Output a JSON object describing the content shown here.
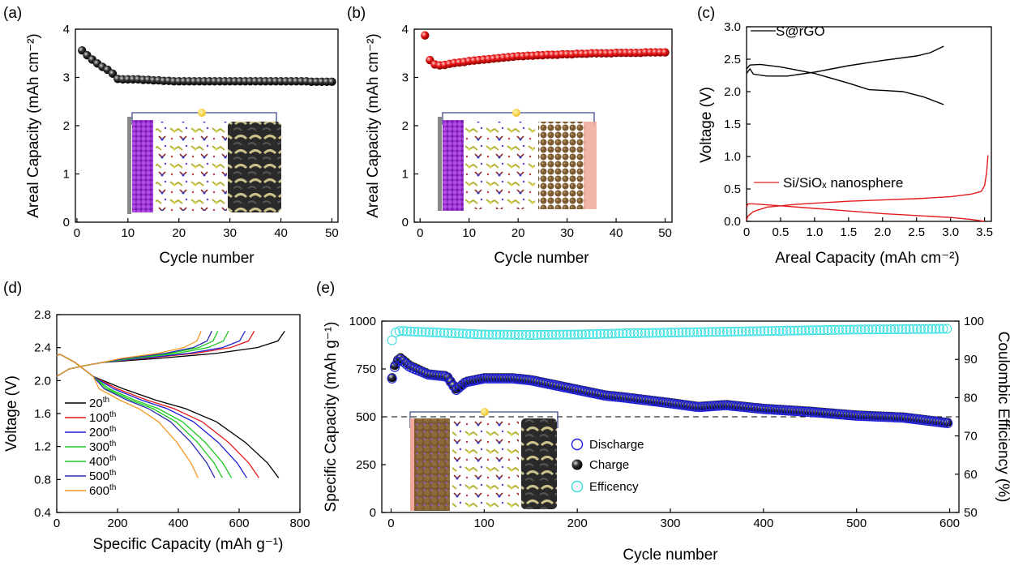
{
  "colors": {
    "charge_black": "#000000",
    "discharge_blue": "#1f1fd6",
    "efficiency_cyan": "#33dfe0",
    "red": "#e41a1c",
    "green": "#1ec81e",
    "orange": "#f39a26",
    "dark_blue": "#2a2ab0"
  },
  "chart_data": [
    {
      "panel": "(a)",
      "type": "scatter",
      "xlabel": "Cycle number",
      "ylabel": "Areal Capacity (mAh cm⁻²)",
      "xlim": [
        0,
        50
      ],
      "ylim": [
        0,
        4
      ],
      "xticks": [
        0,
        10,
        20,
        30,
        40,
        50
      ],
      "yticks": [
        0,
        1,
        2,
        3,
        4
      ],
      "series": [
        {
          "marker": "black-sphere",
          "x": [
            1,
            2,
            3,
            4,
            5,
            6,
            7,
            8,
            9,
            10,
            11,
            12,
            13,
            14,
            15,
            16,
            17,
            18,
            19,
            20,
            21,
            22,
            23,
            24,
            25,
            26,
            27,
            28,
            29,
            30,
            31,
            32,
            33,
            34,
            35,
            36,
            37,
            38,
            39,
            40,
            41,
            42,
            43,
            44,
            45,
            46,
            47,
            48,
            49,
            50
          ],
          "values": [
            3.56,
            3.46,
            3.37,
            3.29,
            3.22,
            3.16,
            3.08,
            2.97,
            2.96,
            2.96,
            2.96,
            2.96,
            2.95,
            2.95,
            2.94,
            2.94,
            2.93,
            2.93,
            2.92,
            2.92,
            2.92,
            2.92,
            2.92,
            2.92,
            2.92,
            2.92,
            2.92,
            2.92,
            2.92,
            2.92,
            2.92,
            2.92,
            2.92,
            2.92,
            2.92,
            2.92,
            2.92,
            2.92,
            2.92,
            2.92,
            2.92,
            2.92,
            2.92,
            2.92,
            2.92,
            2.91,
            2.91,
            2.91,
            2.91,
            2.91
          ]
        }
      ]
    },
    {
      "panel": "(b)",
      "type": "scatter",
      "xlabel": "Cycle number",
      "ylabel": "Areal Capacity (mAh cm⁻²)",
      "xlim": [
        0,
        50
      ],
      "ylim": [
        0,
        4
      ],
      "xticks": [
        0,
        10,
        20,
        30,
        40,
        50
      ],
      "yticks": [
        0,
        1,
        2,
        3,
        4
      ],
      "series": [
        {
          "marker": "red-sphere",
          "x": [
            1,
            2,
            3,
            4,
            5,
            6,
            7,
            8,
            9,
            10,
            11,
            12,
            13,
            14,
            15,
            16,
            17,
            18,
            19,
            20,
            21,
            22,
            23,
            24,
            25,
            26,
            27,
            28,
            29,
            30,
            31,
            32,
            33,
            34,
            35,
            36,
            37,
            38,
            39,
            40,
            41,
            42,
            43,
            44,
            45,
            46,
            47,
            48,
            49,
            50
          ],
          "values": [
            3.87,
            3.36,
            3.27,
            3.25,
            3.26,
            3.28,
            3.3,
            3.31,
            3.32,
            3.34,
            3.35,
            3.36,
            3.37,
            3.38,
            3.39,
            3.4,
            3.41,
            3.42,
            3.43,
            3.44,
            3.44,
            3.45,
            3.45,
            3.46,
            3.46,
            3.47,
            3.47,
            3.47,
            3.48,
            3.48,
            3.48,
            3.49,
            3.49,
            3.49,
            3.5,
            3.5,
            3.5,
            3.5,
            3.5,
            3.51,
            3.51,
            3.51,
            3.51,
            3.51,
            3.51,
            3.52,
            3.52,
            3.52,
            3.52,
            3.52
          ]
        }
      ]
    },
    {
      "panel": "(c)",
      "type": "line",
      "xlabel": "Areal Capacity (mAh cm⁻²)",
      "ylabel": "Voltage (V)",
      "xlim": [
        0,
        3.6
      ],
      "ylim": [
        0,
        3.0
      ],
      "xticks": [
        0,
        0.5,
        1.0,
        1.5,
        2.0,
        2.5,
        3.0,
        3.5
      ],
      "yticks": [
        0,
        0.5,
        1.0,
        1.5,
        2.0,
        2.5,
        3.0
      ],
      "series": [
        {
          "name": "S@rGO",
          "color": "black",
          "segment": "charge",
          "x": [
            0,
            0.05,
            0.1,
            0.3,
            0.6,
            1.0,
            1.5,
            2.0,
            2.5,
            2.7,
            2.8,
            2.9
          ],
          "values": [
            2.28,
            2.35,
            2.27,
            2.24,
            2.24,
            2.3,
            2.4,
            2.48,
            2.55,
            2.6,
            2.65,
            2.7
          ]
        },
        {
          "name": "S@rGO",
          "color": "black",
          "segment": "discharge",
          "x": [
            0,
            0.05,
            0.2,
            0.5,
            1.0,
            1.5,
            1.8,
            2.0,
            2.3,
            2.6,
            2.9
          ],
          "values": [
            2.35,
            2.41,
            2.42,
            2.38,
            2.28,
            2.13,
            2.03,
            2.02,
            2.0,
            1.92,
            1.8
          ]
        },
        {
          "name": "Si/SiOₓ nanosphere",
          "color": "red",
          "segment": "charge",
          "x": [
            0,
            0.02,
            0.1,
            0.3,
            0.7,
            1.0,
            1.5,
            2.0,
            2.5,
            3.0,
            3.3,
            3.45,
            3.5,
            3.53,
            3.55
          ],
          "values": [
            0.02,
            0.08,
            0.15,
            0.22,
            0.26,
            0.28,
            0.31,
            0.33,
            0.35,
            0.38,
            0.42,
            0.46,
            0.55,
            0.75,
            1.02
          ]
        },
        {
          "name": "Si/SiOₓ nanosphere",
          "color": "red",
          "segment": "discharge",
          "x": [
            0,
            0.02,
            0.1,
            0.5,
            1.0,
            1.5,
            2.0,
            2.5,
            3.0,
            3.3,
            3.5
          ],
          "values": [
            0.22,
            0.27,
            0.27,
            0.24,
            0.2,
            0.16,
            0.12,
            0.09,
            0.06,
            0.03,
            0.0
          ]
        }
      ],
      "legend": [
        "S@rGO",
        "Si/SiOₓ nanosphere"
      ]
    },
    {
      "panel": "(d)",
      "type": "line",
      "xlabel": "Specific Capacity (mAh g⁻¹)",
      "ylabel": "Voltage (V)",
      "xlim": [
        0,
        800
      ],
      "ylim": [
        0.4,
        2.8
      ],
      "xticks": [
        0,
        200,
        400,
        600,
        800
      ],
      "yticks": [
        0.4,
        0.8,
        1.2,
        1.6,
        2.0,
        2.4,
        2.8
      ],
      "series": [
        {
          "name": "20th",
          "color": "black",
          "charge_end": 750,
          "discharge_end": 730
        },
        {
          "name": "100th",
          "color": "red",
          "charge_end": 650,
          "discharge_end": 665
        },
        {
          "name": "200th",
          "color": "blue",
          "charge_end": 620,
          "discharge_end": 625
        },
        {
          "name": "300th",
          "color": "green",
          "charge_end": 565,
          "discharge_end": 575
        },
        {
          "name": "400th",
          "color": "green",
          "charge_end": 530,
          "discharge_end": 545
        },
        {
          "name": "500th",
          "color": "navy",
          "charge_end": 510,
          "discharge_end": 520
        },
        {
          "name": "600th",
          "color": "orange",
          "charge_end": 475,
          "discharge_end": 465
        }
      ],
      "legend_labels": [
        "20",
        "100",
        "200",
        "300",
        "400",
        "500",
        "600"
      ],
      "legend_suffix": "th"
    },
    {
      "panel": "(e)",
      "type": "scatter",
      "xlabel": "Cycle number",
      "ylabel": "Specific Capacity (mAh g⁻¹)",
      "ylabel_right": "Coulombic Efficiency (%)",
      "xlim": [
        -10,
        610
      ],
      "ylim": [
        0,
        1000
      ],
      "ylim_right": [
        50,
        100
      ],
      "xticks": [
        0,
        100,
        200,
        300,
        400,
        500,
        600
      ],
      "yticks": [
        0,
        250,
        500,
        750,
        1000
      ],
      "yticks_right": [
        50,
        60,
        70,
        80,
        90,
        100
      ],
      "reference_line": 500,
      "series": [
        {
          "name": "Discharge",
          "marker": "blue-open-circle",
          "x": [
            1,
            5,
            10,
            20,
            40,
            60,
            70,
            80,
            100,
            130,
            150,
            170,
            200,
            230,
            250,
            300,
            330,
            360,
            400,
            450,
            500,
            550,
            600
          ],
          "values": [
            700,
            780,
            800,
            760,
            720,
            710,
            640,
            680,
            700,
            700,
            690,
            670,
            640,
            610,
            600,
            570,
            550,
            560,
            540,
            525,
            505,
            495,
            465
          ]
        },
        {
          "name": "Charge",
          "marker": "black-sphere",
          "x": [
            1,
            5,
            10,
            20,
            40,
            60,
            70,
            80,
            100,
            130,
            150,
            170,
            200,
            230,
            250,
            300,
            330,
            360,
            400,
            450,
            500,
            550,
            600
          ],
          "values": [
            705,
            790,
            810,
            770,
            725,
            715,
            645,
            685,
            705,
            705,
            695,
            675,
            645,
            615,
            605,
            575,
            555,
            565,
            545,
            530,
            510,
            500,
            470
          ]
        },
        {
          "name": "Efficency",
          "marker": "cyan-open-circle",
          "axis": "right",
          "x": [
            1,
            5,
            10,
            20,
            50,
            100,
            150,
            200,
            250,
            300,
            350,
            400,
            450,
            500,
            550,
            600
          ],
          "values": [
            95,
            97,
            97.5,
            97.3,
            97,
            96.5,
            96.4,
            96.5,
            96.8,
            97,
            97.2,
            97.4,
            97.6,
            97.8,
            97.9,
            98
          ]
        }
      ],
      "legend": [
        "Discharge",
        "Charge",
        "Efficency"
      ]
    }
  ],
  "labels": {
    "a": "(a)",
    "b": "(b)",
    "c": "(c)",
    "d": "(d)",
    "e": "(e)",
    "a_x": "Cycle number",
    "a_y": "Areal Capacity (mAh cm⁻²)",
    "b_x": "Cycle number",
    "b_y": "Areal Capacity (mAh cm⁻²)",
    "c_x": "Areal Capacity (mAh cm⁻²)",
    "c_y": "Voltage (V)",
    "c_leg1": "S@rGO",
    "c_leg2": "Si/SiOₓ nanosphere",
    "d_x": "Specific Capacity (mAh g⁻¹)",
    "d_y": "Voltage (V)",
    "e_x": "Cycle number",
    "e_y": "Specific Capacity (mAh g⁻¹)",
    "e_y2": "Coulombic Efficiency (%)",
    "e_leg1": "Discharge",
    "e_leg2": "Charge",
    "e_leg3": "Efficency"
  }
}
